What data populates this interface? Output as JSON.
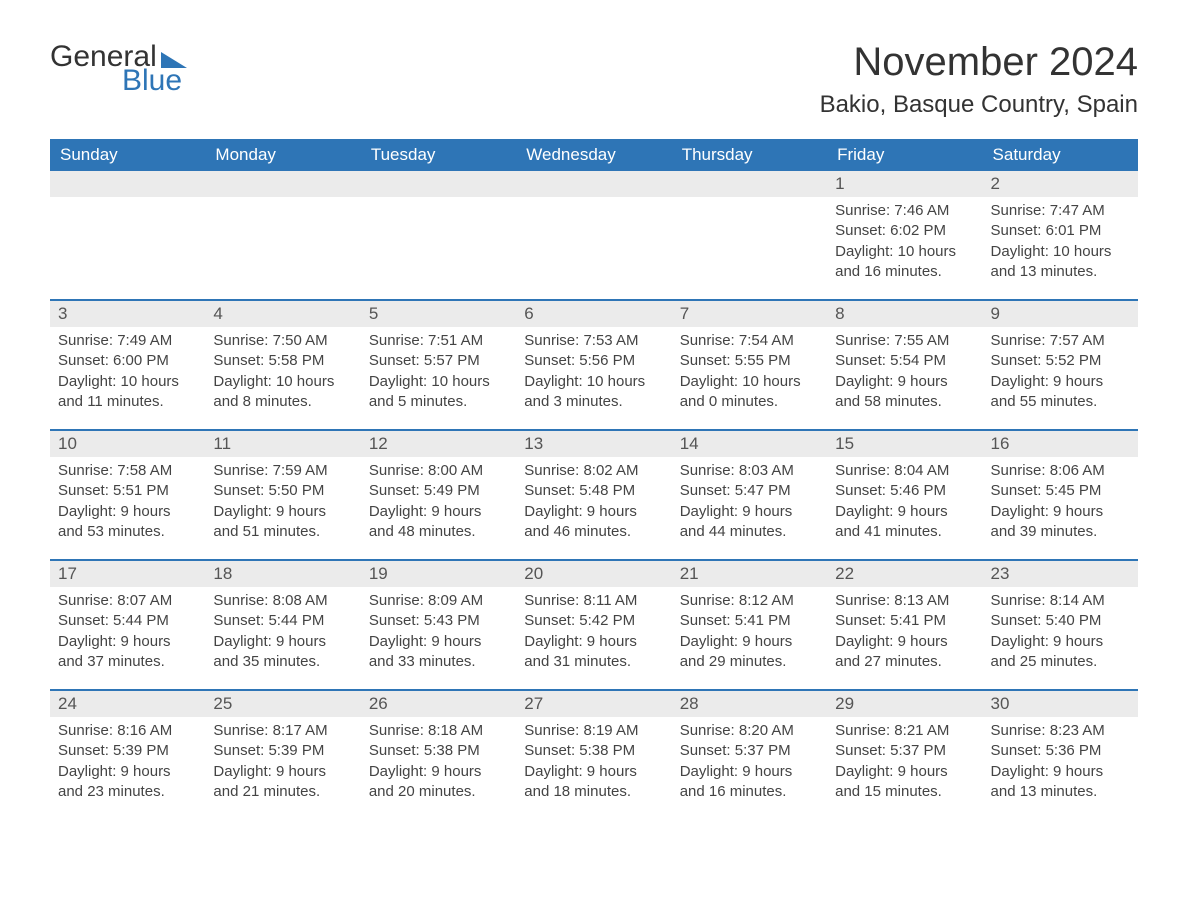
{
  "logo": {
    "word1": "General",
    "word2": "Blue"
  },
  "title": "November 2024",
  "location": "Bakio, Basque Country, Spain",
  "colors": {
    "brand_blue": "#2e75b6",
    "bar_grey": "#ebebeb",
    "text": "#333333",
    "body_text": "#444444"
  },
  "day_headers": [
    "Sunday",
    "Monday",
    "Tuesday",
    "Wednesday",
    "Thursday",
    "Friday",
    "Saturday"
  ],
  "weeks": [
    [
      {
        "empty": true
      },
      {
        "empty": true
      },
      {
        "empty": true
      },
      {
        "empty": true
      },
      {
        "empty": true
      },
      {
        "day": "1",
        "sunrise": "Sunrise: 7:46 AM",
        "sunset": "Sunset: 6:02 PM",
        "daylight1": "Daylight: 10 hours",
        "daylight2": "and 16 minutes."
      },
      {
        "day": "2",
        "sunrise": "Sunrise: 7:47 AM",
        "sunset": "Sunset: 6:01 PM",
        "daylight1": "Daylight: 10 hours",
        "daylight2": "and 13 minutes."
      }
    ],
    [
      {
        "day": "3",
        "sunrise": "Sunrise: 7:49 AM",
        "sunset": "Sunset: 6:00 PM",
        "daylight1": "Daylight: 10 hours",
        "daylight2": "and 11 minutes."
      },
      {
        "day": "4",
        "sunrise": "Sunrise: 7:50 AM",
        "sunset": "Sunset: 5:58 PM",
        "daylight1": "Daylight: 10 hours",
        "daylight2": "and 8 minutes."
      },
      {
        "day": "5",
        "sunrise": "Sunrise: 7:51 AM",
        "sunset": "Sunset: 5:57 PM",
        "daylight1": "Daylight: 10 hours",
        "daylight2": "and 5 minutes."
      },
      {
        "day": "6",
        "sunrise": "Sunrise: 7:53 AM",
        "sunset": "Sunset: 5:56 PM",
        "daylight1": "Daylight: 10 hours",
        "daylight2": "and 3 minutes."
      },
      {
        "day": "7",
        "sunrise": "Sunrise: 7:54 AM",
        "sunset": "Sunset: 5:55 PM",
        "daylight1": "Daylight: 10 hours",
        "daylight2": "and 0 minutes."
      },
      {
        "day": "8",
        "sunrise": "Sunrise: 7:55 AM",
        "sunset": "Sunset: 5:54 PM",
        "daylight1": "Daylight: 9 hours",
        "daylight2": "and 58 minutes."
      },
      {
        "day": "9",
        "sunrise": "Sunrise: 7:57 AM",
        "sunset": "Sunset: 5:52 PM",
        "daylight1": "Daylight: 9 hours",
        "daylight2": "and 55 minutes."
      }
    ],
    [
      {
        "day": "10",
        "sunrise": "Sunrise: 7:58 AM",
        "sunset": "Sunset: 5:51 PM",
        "daylight1": "Daylight: 9 hours",
        "daylight2": "and 53 minutes."
      },
      {
        "day": "11",
        "sunrise": "Sunrise: 7:59 AM",
        "sunset": "Sunset: 5:50 PM",
        "daylight1": "Daylight: 9 hours",
        "daylight2": "and 51 minutes."
      },
      {
        "day": "12",
        "sunrise": "Sunrise: 8:00 AM",
        "sunset": "Sunset: 5:49 PM",
        "daylight1": "Daylight: 9 hours",
        "daylight2": "and 48 minutes."
      },
      {
        "day": "13",
        "sunrise": "Sunrise: 8:02 AM",
        "sunset": "Sunset: 5:48 PM",
        "daylight1": "Daylight: 9 hours",
        "daylight2": "and 46 minutes."
      },
      {
        "day": "14",
        "sunrise": "Sunrise: 8:03 AM",
        "sunset": "Sunset: 5:47 PM",
        "daylight1": "Daylight: 9 hours",
        "daylight2": "and 44 minutes."
      },
      {
        "day": "15",
        "sunrise": "Sunrise: 8:04 AM",
        "sunset": "Sunset: 5:46 PM",
        "daylight1": "Daylight: 9 hours",
        "daylight2": "and 41 minutes."
      },
      {
        "day": "16",
        "sunrise": "Sunrise: 8:06 AM",
        "sunset": "Sunset: 5:45 PM",
        "daylight1": "Daylight: 9 hours",
        "daylight2": "and 39 minutes."
      }
    ],
    [
      {
        "day": "17",
        "sunrise": "Sunrise: 8:07 AM",
        "sunset": "Sunset: 5:44 PM",
        "daylight1": "Daylight: 9 hours",
        "daylight2": "and 37 minutes."
      },
      {
        "day": "18",
        "sunrise": "Sunrise: 8:08 AM",
        "sunset": "Sunset: 5:44 PM",
        "daylight1": "Daylight: 9 hours",
        "daylight2": "and 35 minutes."
      },
      {
        "day": "19",
        "sunrise": "Sunrise: 8:09 AM",
        "sunset": "Sunset: 5:43 PM",
        "daylight1": "Daylight: 9 hours",
        "daylight2": "and 33 minutes."
      },
      {
        "day": "20",
        "sunrise": "Sunrise: 8:11 AM",
        "sunset": "Sunset: 5:42 PM",
        "daylight1": "Daylight: 9 hours",
        "daylight2": "and 31 minutes."
      },
      {
        "day": "21",
        "sunrise": "Sunrise: 8:12 AM",
        "sunset": "Sunset: 5:41 PM",
        "daylight1": "Daylight: 9 hours",
        "daylight2": "and 29 minutes."
      },
      {
        "day": "22",
        "sunrise": "Sunrise: 8:13 AM",
        "sunset": "Sunset: 5:41 PM",
        "daylight1": "Daylight: 9 hours",
        "daylight2": "and 27 minutes."
      },
      {
        "day": "23",
        "sunrise": "Sunrise: 8:14 AM",
        "sunset": "Sunset: 5:40 PM",
        "daylight1": "Daylight: 9 hours",
        "daylight2": "and 25 minutes."
      }
    ],
    [
      {
        "day": "24",
        "sunrise": "Sunrise: 8:16 AM",
        "sunset": "Sunset: 5:39 PM",
        "daylight1": "Daylight: 9 hours",
        "daylight2": "and 23 minutes."
      },
      {
        "day": "25",
        "sunrise": "Sunrise: 8:17 AM",
        "sunset": "Sunset: 5:39 PM",
        "daylight1": "Daylight: 9 hours",
        "daylight2": "and 21 minutes."
      },
      {
        "day": "26",
        "sunrise": "Sunrise: 8:18 AM",
        "sunset": "Sunset: 5:38 PM",
        "daylight1": "Daylight: 9 hours",
        "daylight2": "and 20 minutes."
      },
      {
        "day": "27",
        "sunrise": "Sunrise: 8:19 AM",
        "sunset": "Sunset: 5:38 PM",
        "daylight1": "Daylight: 9 hours",
        "daylight2": "and 18 minutes."
      },
      {
        "day": "28",
        "sunrise": "Sunrise: 8:20 AM",
        "sunset": "Sunset: 5:37 PM",
        "daylight1": "Daylight: 9 hours",
        "daylight2": "and 16 minutes."
      },
      {
        "day": "29",
        "sunrise": "Sunrise: 8:21 AM",
        "sunset": "Sunset: 5:37 PM",
        "daylight1": "Daylight: 9 hours",
        "daylight2": "and 15 minutes."
      },
      {
        "day": "30",
        "sunrise": "Sunrise: 8:23 AM",
        "sunset": "Sunset: 5:36 PM",
        "daylight1": "Daylight: 9 hours",
        "daylight2": "and 13 minutes."
      }
    ]
  ]
}
